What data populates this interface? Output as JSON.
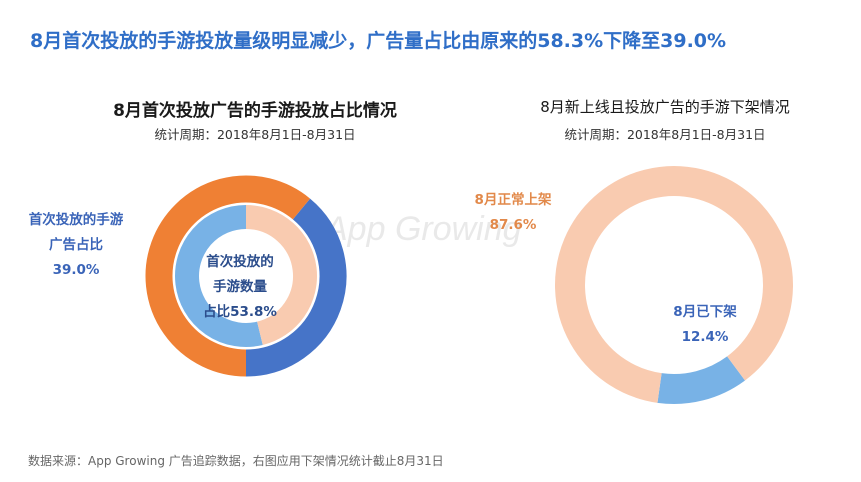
{
  "headline": "8月首次投放的手游投放量级明显减少，广告量占比由原来的58.3%下降至39.0%",
  "watermark": "App Growing",
  "source": "数据来源：App Growing 广告追踪数据，右图应用下架情况统计截止8月31日",
  "colors": {
    "headline": "#2f6ec7",
    "outer_first_launch": "#4674c8",
    "outer_other": "#ef8034",
    "inner_first_launch": "#78b2e6",
    "inner_other": "#f9cbb0",
    "right_normal": "#f9cbb0",
    "right_delisted": "#78b2e6"
  },
  "chart_data": [
    {
      "type": "pie",
      "variant": "nested-donut",
      "title": "8月首次投放广告的手游投放占比情况",
      "subtitle": "统计周期：2018年8月1日-8月31日",
      "rings": [
        {
          "ring": "outer",
          "values": [
            39.0,
            61.0
          ]
        },
        {
          "ring": "inner",
          "values": [
            53.8,
            46.2
          ]
        }
      ],
      "annotations": {
        "outer_label_lines": [
          "首次投放的手游",
          "广告占比",
          "39.0%"
        ],
        "inner_label_lines": [
          "首次投放的",
          "手游数量",
          "占比53.8%"
        ]
      }
    },
    {
      "type": "pie",
      "variant": "donut",
      "title": "8月新上线且投放广告的手游下架情况",
      "subtitle": "统计周期：2018年8月1日-8月31日",
      "slices": [
        {
          "label": "8月正常上架",
          "value": 87.6,
          "value_label": "87.6%"
        },
        {
          "label": "8月已下架",
          "value": 12.4,
          "value_label": "12.4%"
        }
      ]
    }
  ]
}
